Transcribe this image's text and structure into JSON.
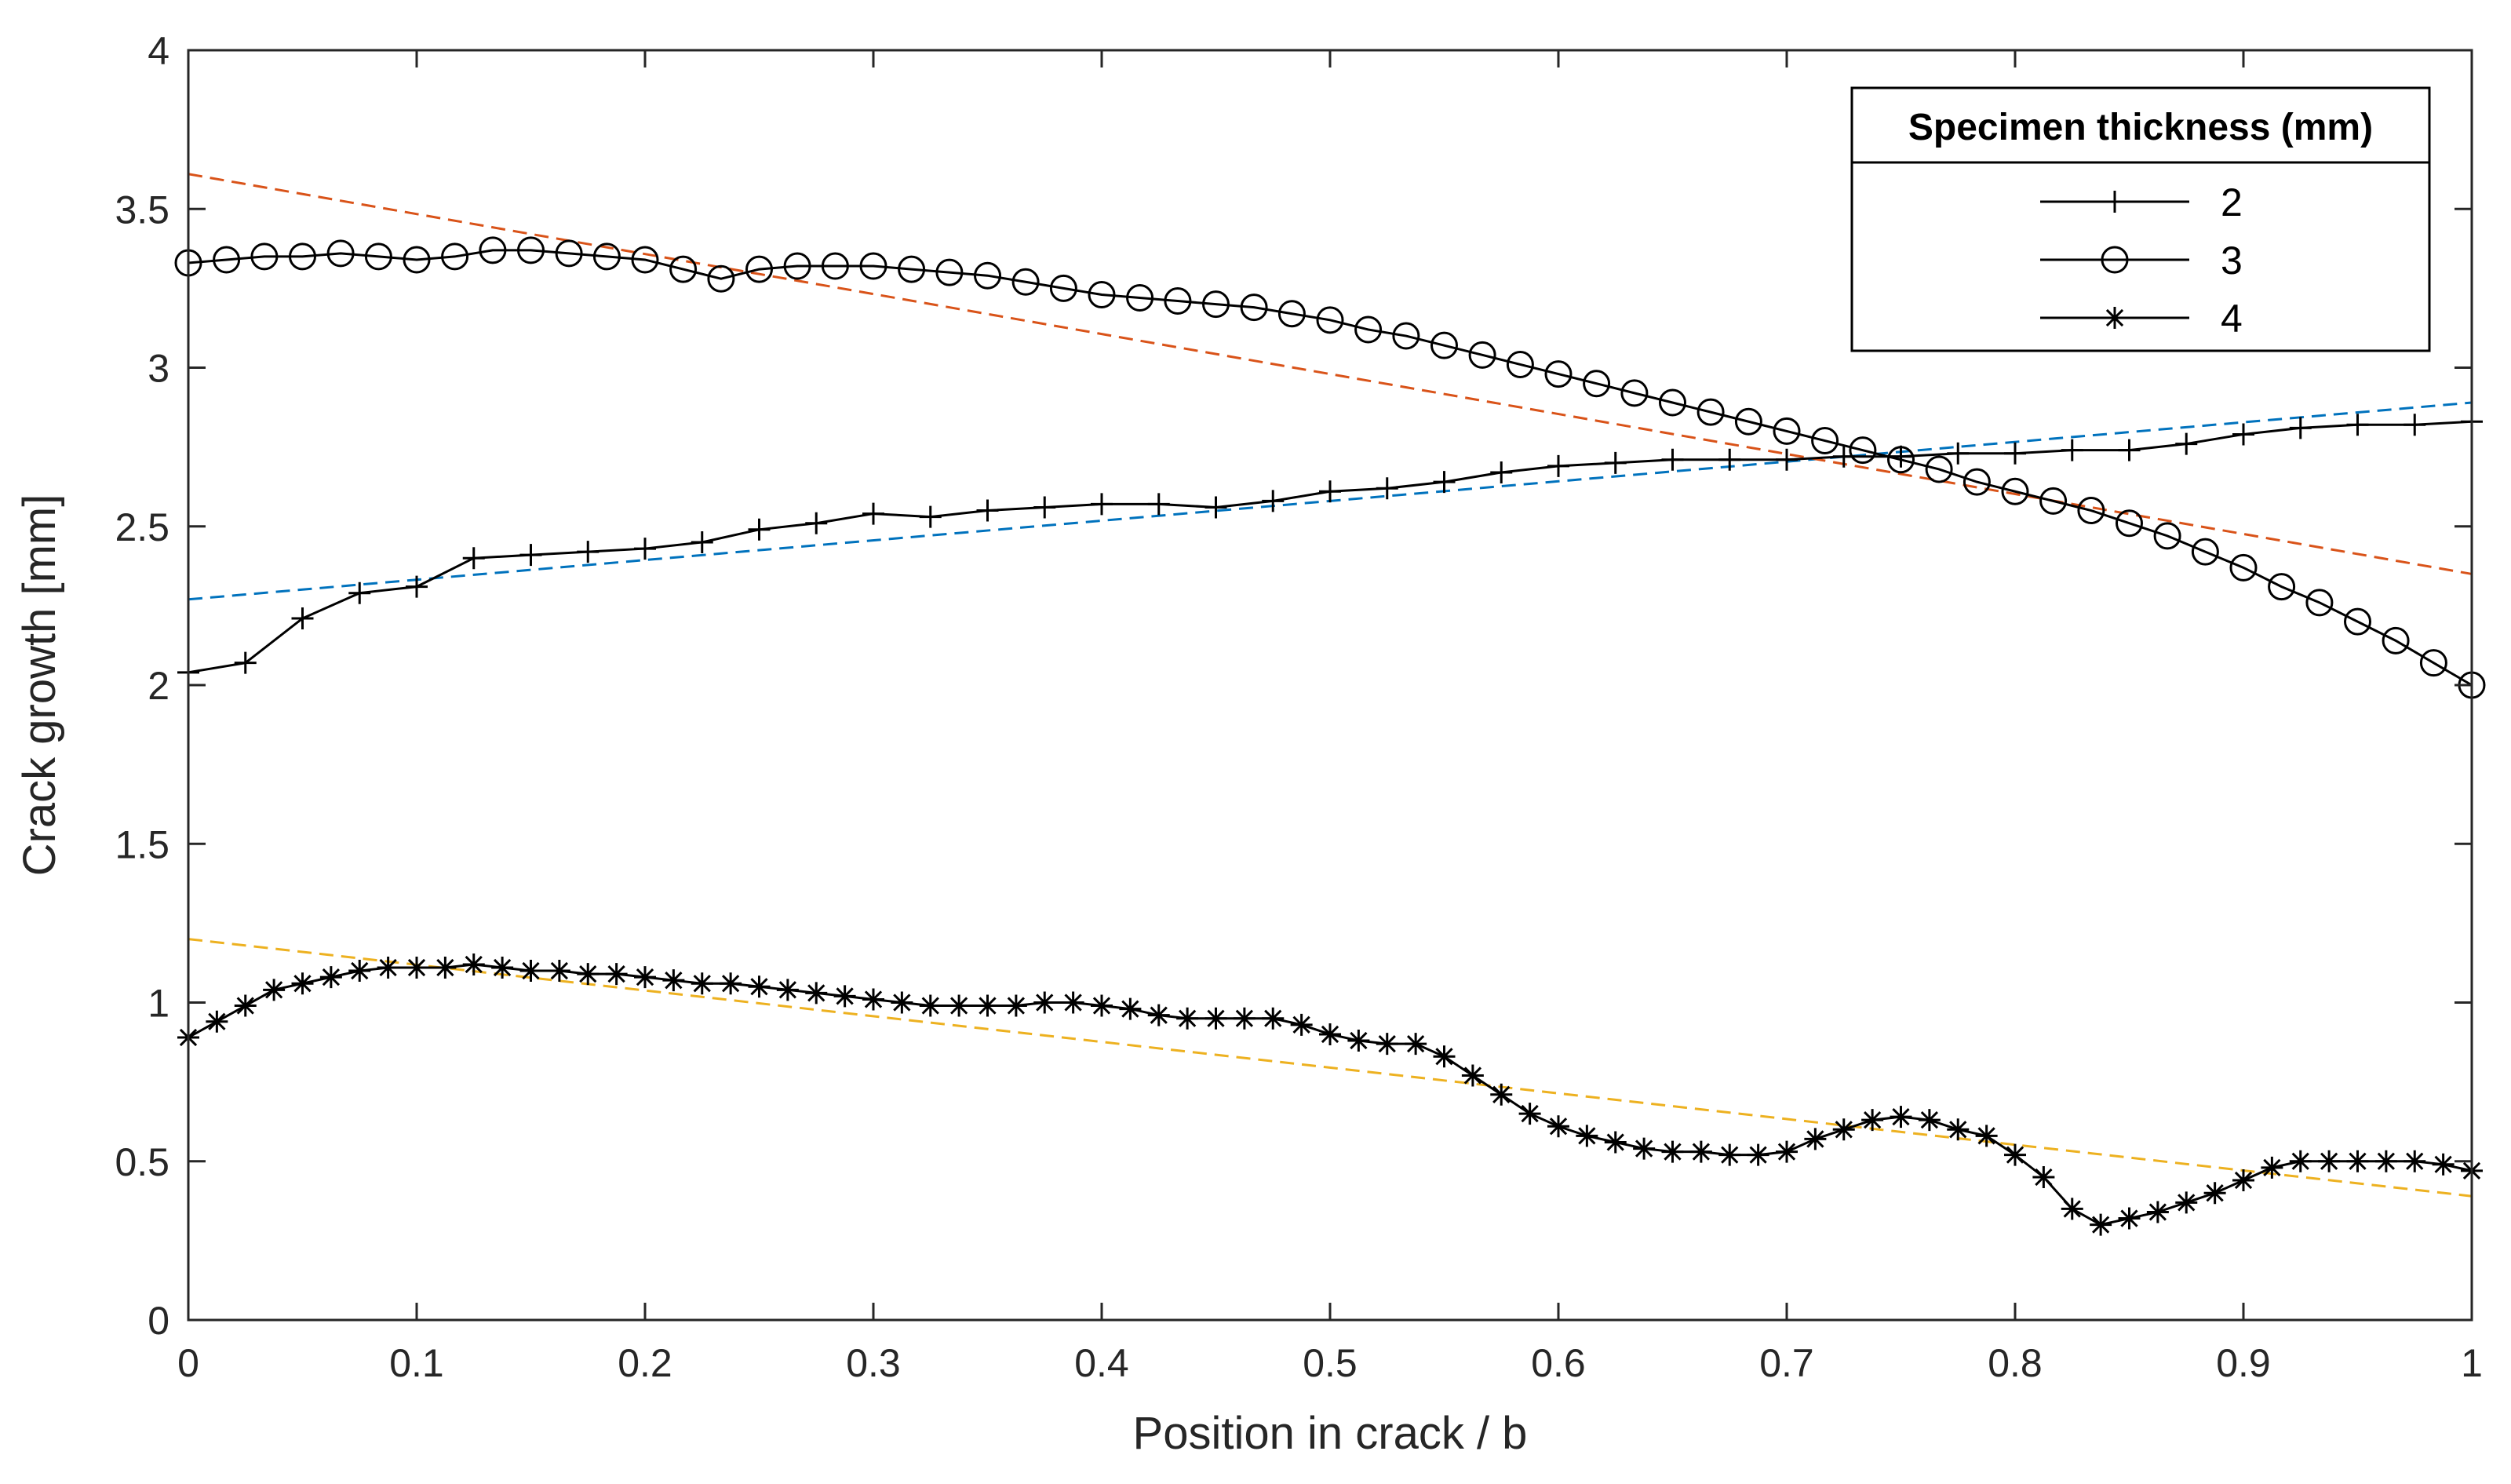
{
  "chart_data": {
    "type": "line",
    "xlabel": "Position in crack / b",
    "ylabel": "Crack growth [mm]",
    "xlim": [
      0,
      1
    ],
    "ylim": [
      0,
      4
    ],
    "xticks": [
      "0",
      "0.1",
      "0.2",
      "0.3",
      "0.4",
      "0.5",
      "0.6",
      "0.7",
      "0.8",
      "0.9",
      "1"
    ],
    "yticks": [
      "0",
      "0.5",
      "1",
      "1.5",
      "2",
      "2.5",
      "3",
      "3.5",
      "4"
    ],
    "grid": false,
    "legend": {
      "title": "Specimen thickness (mm)",
      "placement": "top-right"
    },
    "series": [
      {
        "name": "2",
        "marker": "plus",
        "color": "#000000",
        "x": [
          0,
          0.025,
          0.05,
          0.075,
          0.1,
          0.125,
          0.15,
          0.175,
          0.2,
          0.225,
          0.25,
          0.275,
          0.3,
          0.325,
          0.35,
          0.375,
          0.4,
          0.425,
          0.45,
          0.475,
          0.5,
          0.525,
          0.55,
          0.575,
          0.6,
          0.625,
          0.65,
          0.675,
          0.7,
          0.725,
          0.75,
          0.775,
          0.8,
          0.825,
          0.85,
          0.875,
          0.9,
          0.925,
          0.95,
          0.975,
          1
        ],
        "y": [
          2.04,
          2.07,
          2.21,
          2.29,
          2.31,
          2.4,
          2.41,
          2.42,
          2.43,
          2.45,
          2.49,
          2.51,
          2.54,
          2.53,
          2.55,
          2.56,
          2.57,
          2.57,
          2.56,
          2.58,
          2.61,
          2.62,
          2.64,
          2.67,
          2.69,
          2.7,
          2.71,
          2.71,
          2.71,
          2.72,
          2.72,
          2.73,
          2.73,
          2.74,
          2.74,
          2.76,
          2.79,
          2.81,
          2.82,
          2.82,
          2.83
        ]
      },
      {
        "name": "3",
        "marker": "circle",
        "color": "#000000",
        "x": [
          0,
          0.0167,
          0.0333,
          0.05,
          0.0667,
          0.0833,
          0.1,
          0.1167,
          0.1333,
          0.15,
          0.1667,
          0.1833,
          0.2,
          0.2167,
          0.2333,
          0.25,
          0.2667,
          0.2833,
          0.3,
          0.3167,
          0.3333,
          0.35,
          0.3667,
          0.3833,
          0.4,
          0.4167,
          0.4333,
          0.45,
          0.4667,
          0.4833,
          0.5,
          0.5167,
          0.5333,
          0.55,
          0.5667,
          0.5833,
          0.6,
          0.6167,
          0.6333,
          0.65,
          0.6667,
          0.6833,
          0.7,
          0.7167,
          0.7333,
          0.75,
          0.7667,
          0.7833,
          0.8,
          0.8167,
          0.8333,
          0.85,
          0.8667,
          0.8833,
          0.9,
          0.9167,
          0.9333,
          0.95,
          0.9667,
          0.9833,
          1
        ],
        "y": [
          3.33,
          3.34,
          3.35,
          3.35,
          3.36,
          3.35,
          3.34,
          3.35,
          3.37,
          3.37,
          3.36,
          3.35,
          3.34,
          3.31,
          3.28,
          3.31,
          3.32,
          3.32,
          3.32,
          3.31,
          3.3,
          3.29,
          3.27,
          3.25,
          3.23,
          3.22,
          3.21,
          3.2,
          3.19,
          3.17,
          3.15,
          3.12,
          3.1,
          3.07,
          3.04,
          3.01,
          2.98,
          2.95,
          2.92,
          2.89,
          2.86,
          2.83,
          2.8,
          2.77,
          2.74,
          2.71,
          2.68,
          2.64,
          2.61,
          2.58,
          2.55,
          2.51,
          2.47,
          2.42,
          2.37,
          2.31,
          2.26,
          2.2,
          2.14,
          2.07,
          2.0
        ]
      },
      {
        "name": "4",
        "marker": "asterisk",
        "color": "#000000",
        "x": [
          0,
          0.0125,
          0.025,
          0.0375,
          0.05,
          0.0625,
          0.075,
          0.0875,
          0.1,
          0.1125,
          0.125,
          0.1375,
          0.15,
          0.1625,
          0.175,
          0.1875,
          0.2,
          0.2125,
          0.225,
          0.2375,
          0.25,
          0.2625,
          0.275,
          0.2875,
          0.3,
          0.3125,
          0.325,
          0.3375,
          0.35,
          0.3625,
          0.375,
          0.3875,
          0.4,
          0.4125,
          0.425,
          0.4375,
          0.45,
          0.4625,
          0.475,
          0.4875,
          0.5,
          0.5125,
          0.525,
          0.5375,
          0.55,
          0.5625,
          0.575,
          0.5875,
          0.6,
          0.6125,
          0.625,
          0.6375,
          0.65,
          0.6625,
          0.675,
          0.6875,
          0.7,
          0.7125,
          0.725,
          0.7375,
          0.75,
          0.7625,
          0.775,
          0.7875,
          0.8,
          0.8125,
          0.825,
          0.8375,
          0.85,
          0.8625,
          0.875,
          0.8875,
          0.9,
          0.9125,
          0.925,
          0.9375,
          0.95,
          0.9625,
          0.975,
          0.9875,
          1
        ],
        "y": [
          0.89,
          0.94,
          0.99,
          1.04,
          1.06,
          1.08,
          1.1,
          1.11,
          1.11,
          1.11,
          1.12,
          1.11,
          1.1,
          1.1,
          1.09,
          1.09,
          1.08,
          1.07,
          1.06,
          1.06,
          1.05,
          1.04,
          1.03,
          1.02,
          1.01,
          1.0,
          0.99,
          0.99,
          0.99,
          0.99,
          1.0,
          1.0,
          0.99,
          0.98,
          0.96,
          0.95,
          0.95,
          0.95,
          0.95,
          0.93,
          0.9,
          0.88,
          0.87,
          0.87,
          0.83,
          0.77,
          0.71,
          0.65,
          0.61,
          0.58,
          0.56,
          0.54,
          0.53,
          0.53,
          0.52,
          0.52,
          0.53,
          0.57,
          0.6,
          0.63,
          0.64,
          0.63,
          0.6,
          0.58,
          0.52,
          0.45,
          0.35,
          0.3,
          0.32,
          0.34,
          0.37,
          0.4,
          0.44,
          0.48,
          0.5,
          0.5,
          0.5,
          0.5,
          0.5,
          0.49,
          0.47
        ]
      }
    ],
    "trendlines": [
      {
        "color": "#0072BD",
        "style": "dashed",
        "x": [
          0,
          1
        ],
        "y": [
          2.27,
          2.89
        ]
      },
      {
        "color": "#D95319",
        "style": "dashed",
        "x": [
          0,
          1
        ],
        "y": [
          3.61,
          2.35
        ]
      },
      {
        "color": "#EDB120",
        "style": "dashed",
        "x": [
          0,
          1
        ],
        "y": [
          1.2,
          0.39
        ]
      }
    ]
  }
}
